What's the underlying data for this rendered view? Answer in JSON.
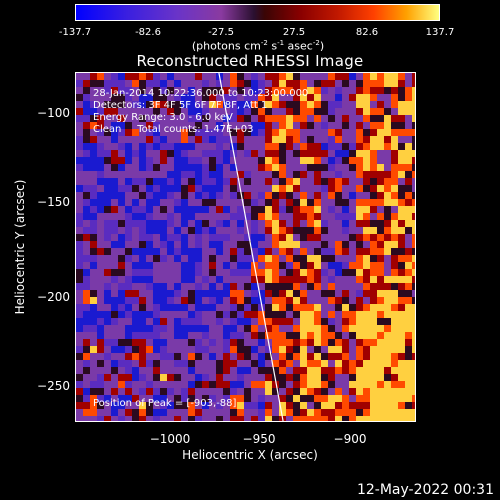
{
  "colorbar": {
    "ticks": [
      "-137.7",
      "-82.6",
      "-27.5",
      "27.5",
      "82.6",
      "137.7"
    ],
    "units_main": "(photons cm",
    "units_sup1": "-2",
    "units_mid": " s",
    "units_sup2": "-1",
    "units_mid2": " asec",
    "units_sup3": "-2",
    "units_end": ")"
  },
  "info": {
    "line1": "28-Jan-2014 10:22:36.000 to 10:23:00.000",
    "line2": "Detectors: 3F 4F 5F 6F 7F 8F, Att 1",
    "line3": "Energy Range: 3.0 - 6.0 keV",
    "line4": "Clean     Total counts: 1.47E+03"
  },
  "peak_text": "Position of Peak = [-903,-88]",
  "timestamp": "12-May-2022 00:31",
  "chart_data": {
    "type": "heatmap",
    "title": "Reconstructed RHESSI Image",
    "xlabel": "Heliocentric X (arcsec)",
    "ylabel": "Heliocentric Y (arcsec)",
    "xlim": [
      -1045,
      -860
    ],
    "ylim": [
      -270,
      -80
    ],
    "x_ticks": [
      -1000,
      -950,
      -900
    ],
    "y_ticks": [
      -100,
      -150,
      -200,
      -250
    ],
    "x_tick_labels": [
      "−1000",
      "−950",
      "−900"
    ],
    "y_tick_labels": [
      "−100",
      "−150",
      "−200",
      "−250"
    ],
    "colorbar_range": [
      -137.7,
      137.7
    ],
    "limb_line": [
      [
        -967,
        -80
      ],
      [
        -932,
        -270
      ]
    ],
    "peak_position": [
      -903,
      -88
    ],
    "colors": {
      "neg_low": "#1a1ad0",
      "neg": "#5a2cc0",
      "background": "#7a3aa8",
      "mid": "#2a0a20",
      "red": "#a00000",
      "orange": "#ff4a00",
      "yellow": "#ffd040"
    }
  }
}
